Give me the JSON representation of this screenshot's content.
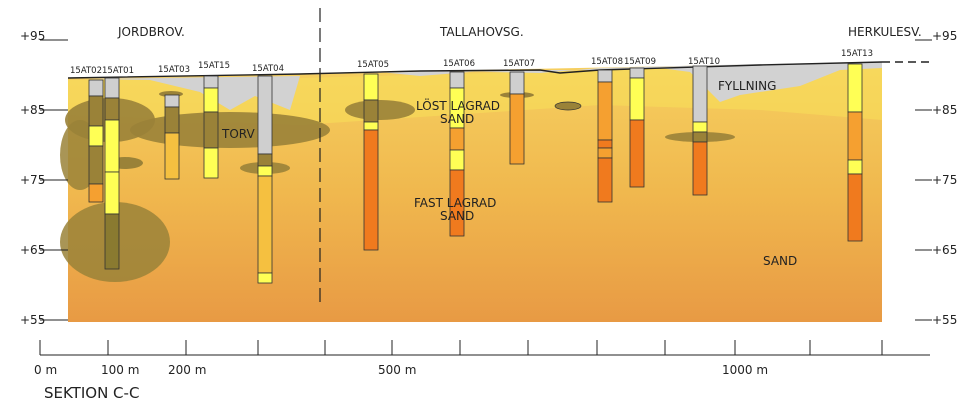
{
  "section_title": "SEKTION C-C",
  "places": [
    {
      "key": "jordbrov",
      "label": "JORDBROV."
    },
    {
      "key": "tallahovsg",
      "label": "TALLAHOVSG."
    },
    {
      "key": "herkulesv",
      "label": "HERKULESV."
    }
  ],
  "elevation_labels": [
    "+95",
    "+85",
    "+75",
    "+65",
    "+55"
  ],
  "distance_labels": [
    "0 m",
    "100 m",
    "200 m",
    "500 m",
    "1000 m"
  ],
  "soil_labels": {
    "fyllning": "FYLLNING",
    "torv": "TORV",
    "lost_1": "LÖST LAGRAD",
    "lost_2": "SAND",
    "fast_1": "FAST LAGRAD",
    "fast_2": "SAND",
    "sand": "SAND"
  },
  "boreholes": [
    {
      "id": "15AT02"
    },
    {
      "id": "15AT01"
    },
    {
      "id": "15AT03"
    },
    {
      "id": "15AT15"
    },
    {
      "id": "15AT04"
    },
    {
      "id": "15AT05"
    },
    {
      "id": "15AT06"
    },
    {
      "id": "15AT07"
    },
    {
      "id": "15AT08"
    },
    {
      "id": "15AT09"
    },
    {
      "id": "15AT10"
    },
    {
      "id": "15AT13"
    }
  ],
  "colors": {
    "sand_base": "#f0b84e",
    "fill_grey": "#cfcfcf",
    "peat": "#9a8238",
    "loose_yellow": "#ffff55",
    "dense_orange": "#f07a1e"
  }
}
